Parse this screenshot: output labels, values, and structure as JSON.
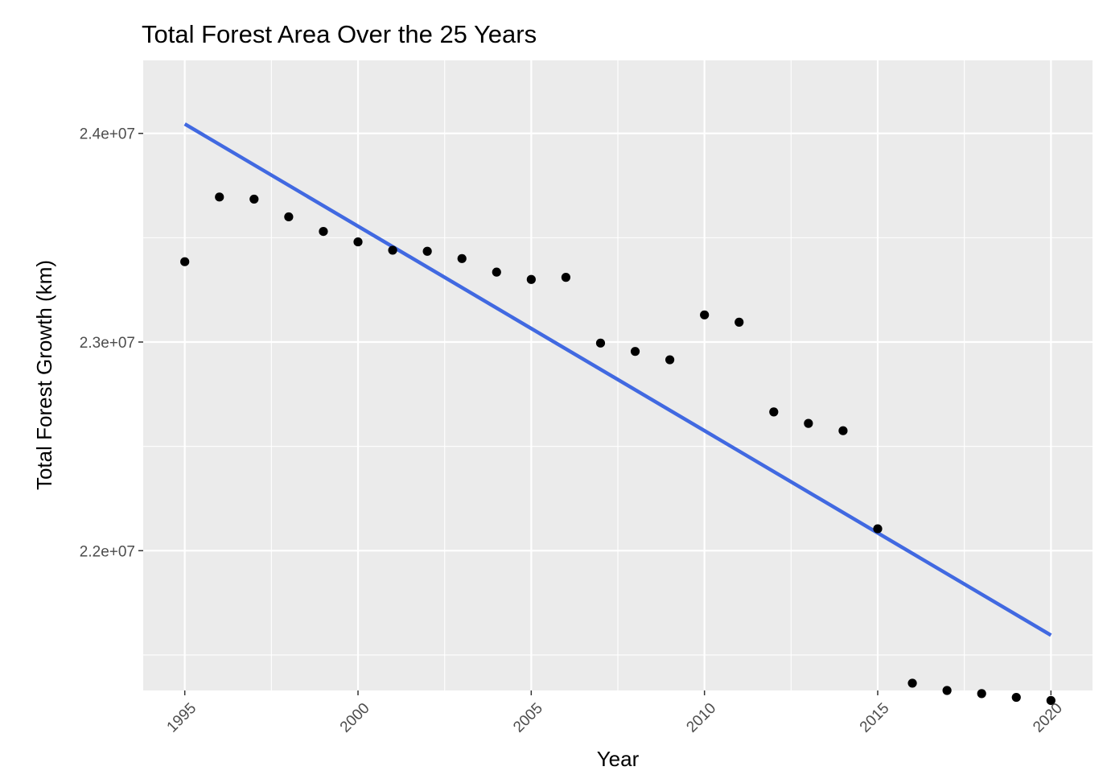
{
  "chart_data": {
    "type": "scatter",
    "title": "Total Forest Area Over the 25 Years",
    "xlabel": "Year",
    "ylabel": "Total Forest Growth (km)",
    "xlim": [
      1993.8,
      2021.2
    ],
    "ylim": [
      21330000,
      24350000
    ],
    "x_ticks": [
      1995,
      2000,
      2005,
      2010,
      2015,
      2020
    ],
    "x_tick_labels": [
      "1995",
      "2000",
      "2005",
      "2010",
      "2015",
      "2020"
    ],
    "y_ticks": [
      22000000,
      23000000,
      24000000
    ],
    "y_tick_labels": [
      "2.2e+07",
      "2.3e+07",
      "2.4e+07"
    ],
    "grid": true,
    "panel_background": "#EBEBEB",
    "point_color": "#000000",
    "trend_color": "#4169E1",
    "series": [
      {
        "type": "scatter",
        "x": [
          1995,
          1996,
          1997,
          1998,
          1999,
          2000,
          2001,
          2002,
          2003,
          2004,
          2005,
          2006,
          2007,
          2008,
          2009,
          2010,
          2011,
          2012,
          2013,
          2014,
          2015,
          2016,
          2017,
          2018,
          2019,
          2020
        ],
        "y": [
          23385000,
          23695000,
          23685000,
          23600000,
          23530000,
          23480000,
          23440000,
          23435000,
          23400000,
          23335000,
          23300000,
          23310000,
          22995000,
          22955000,
          22915000,
          23130000,
          23095000,
          22665000,
          22610000,
          22575000,
          22105000,
          21365000,
          21330000,
          21315000,
          21297000,
          21282000
        ]
      }
    ],
    "trend_line": {
      "type": "linear",
      "x": [
        1995,
        2020
      ],
      "y": [
        24045000,
        21595000
      ]
    }
  }
}
